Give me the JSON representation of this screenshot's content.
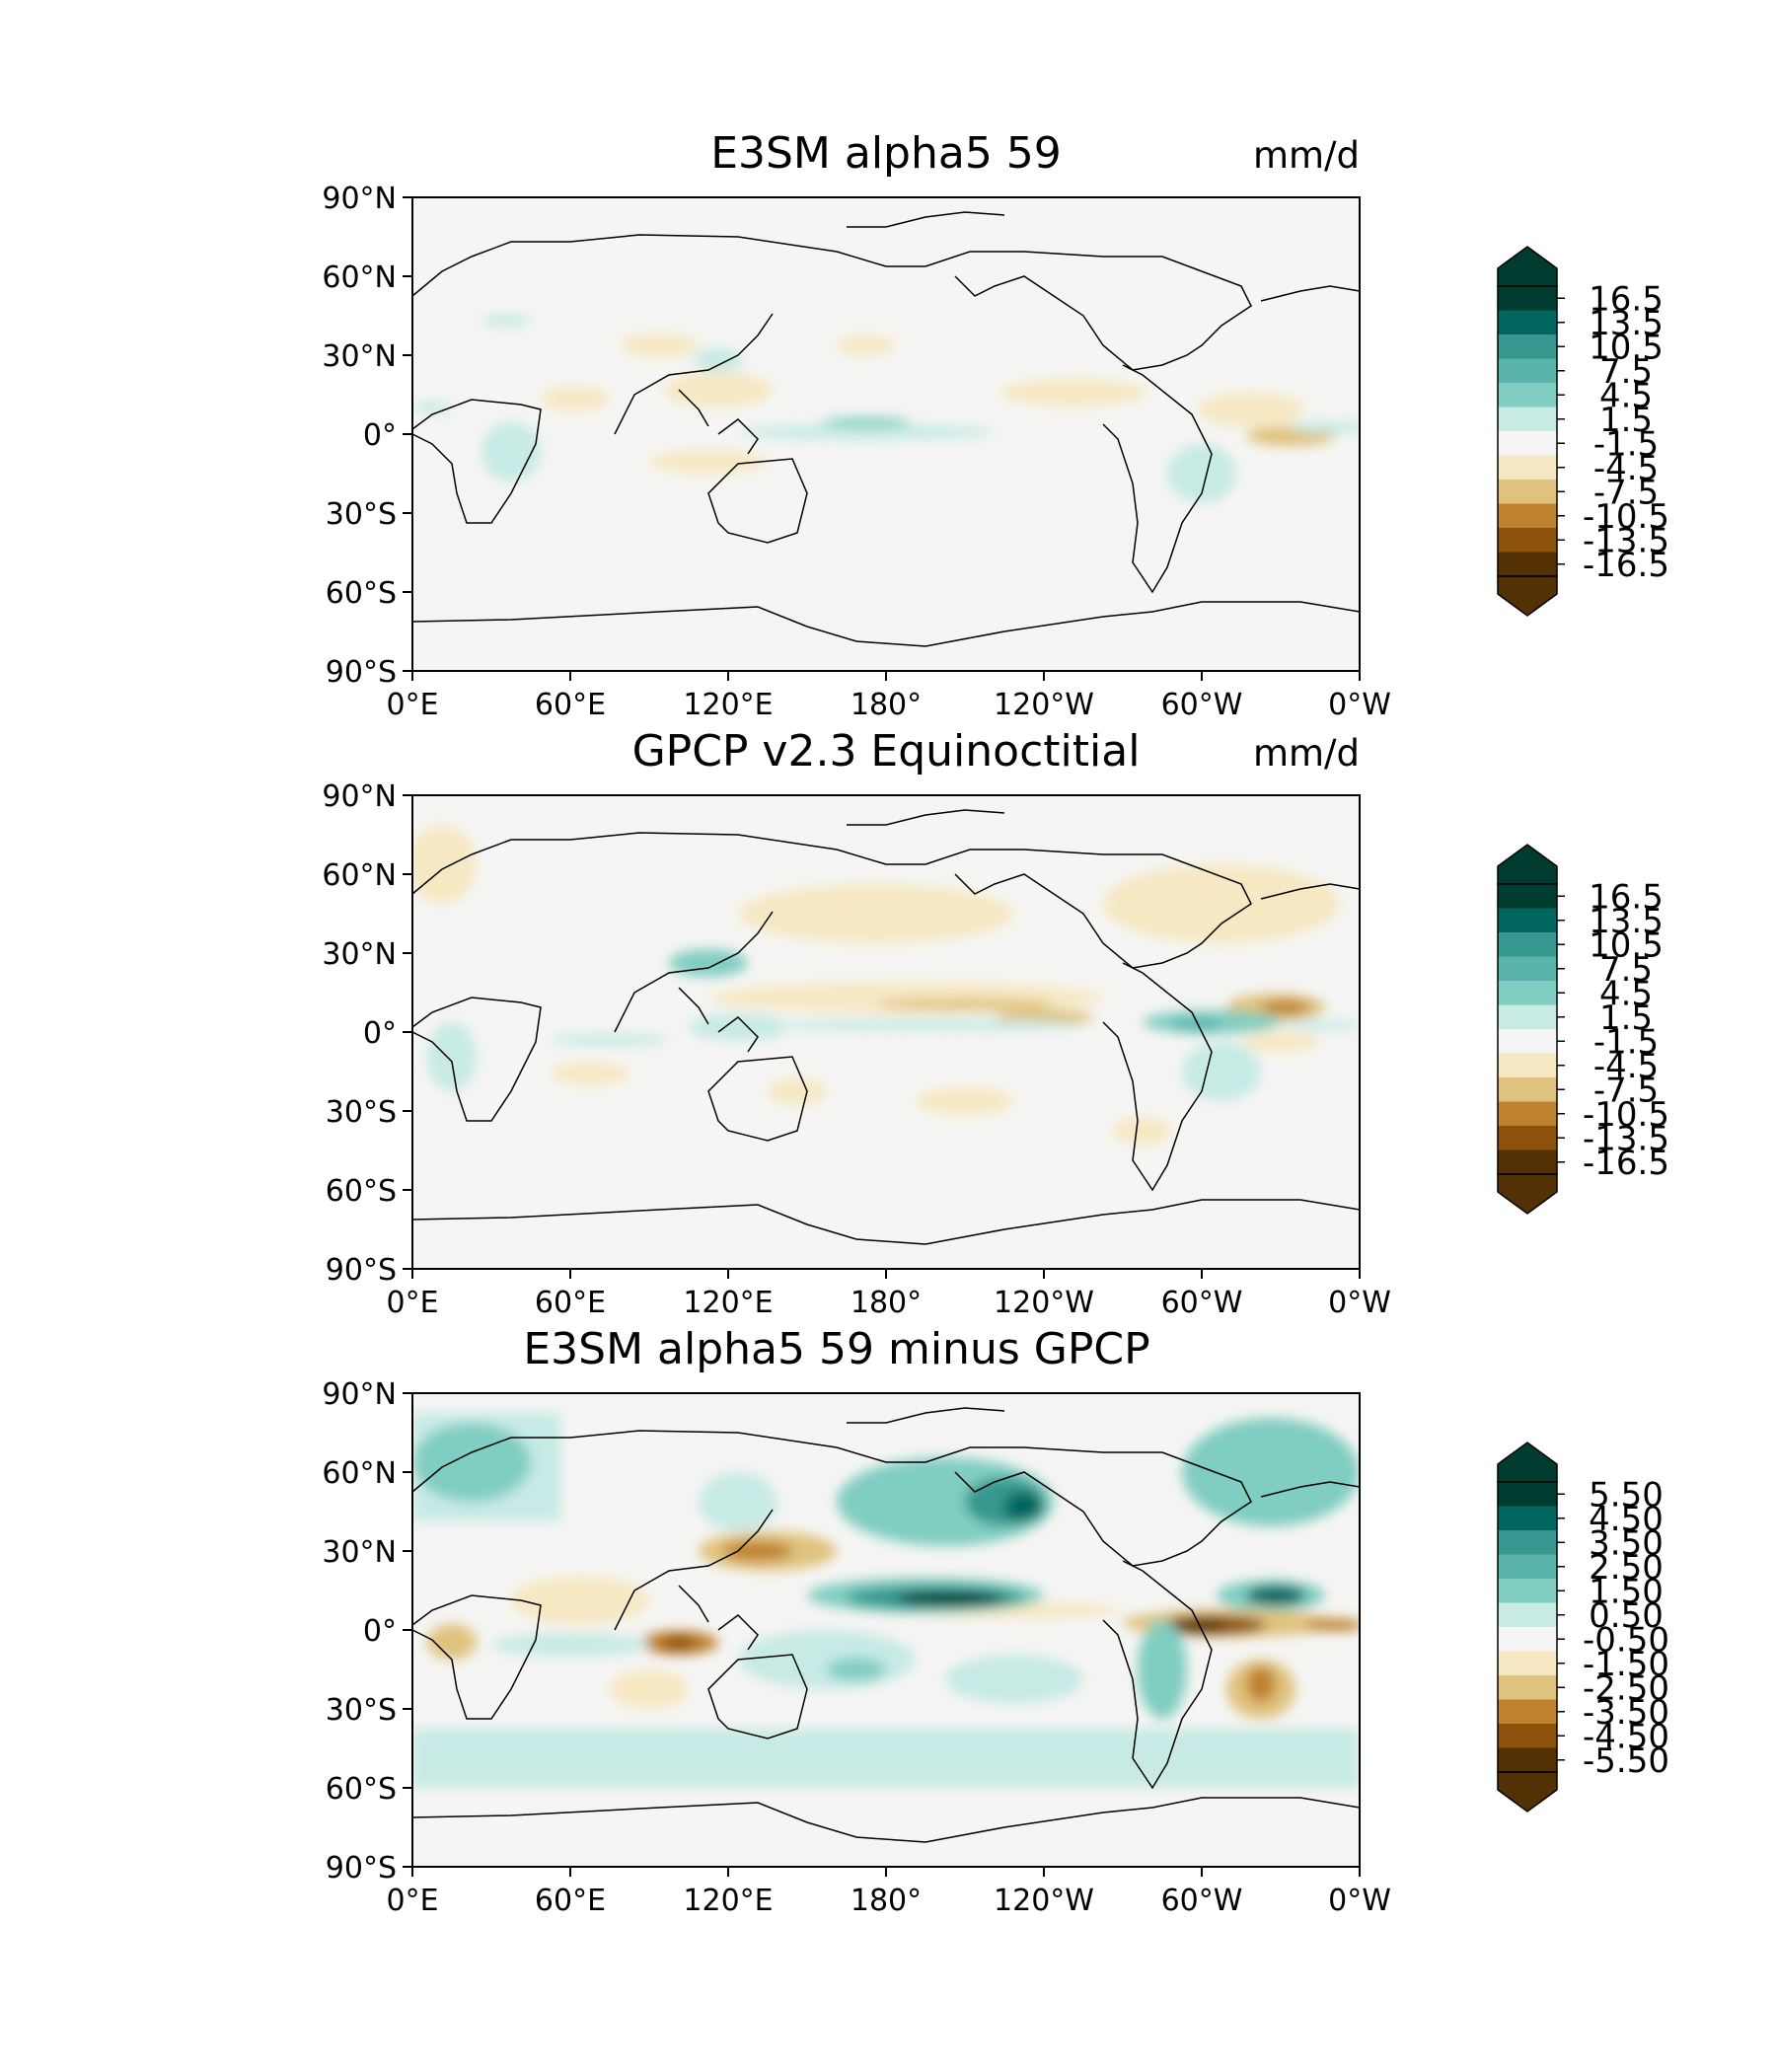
{
  "figure": {
    "x_ticks": [
      "0°E",
      "60°E",
      "120°E",
      "180°",
      "120°W",
      "60°W",
      "0°W"
    ],
    "y_ticks": [
      "90°N",
      "60°N",
      "30°N",
      "0°",
      "30°S",
      "60°S",
      "90°S"
    ]
  },
  "panels": [
    {
      "id": "model",
      "title": "E3SM alpha5 59",
      "units": "mm/d",
      "colorbar_labels": [
        "16.5",
        "13.5",
        "10.5",
        "7.5",
        "4.5",
        "1.5",
        "-1.5",
        "-4.5",
        "-7.5",
        "-10.5",
        "-13.5",
        "-16.5"
      ],
      "colorbar_colors": [
        "#003c30",
        "#01665e",
        "#35978f",
        "#5ab4ac",
        "#80cdc1",
        "#c7eae5",
        "#f5f5f5",
        "#f6e8c3",
        "#dfc27d",
        "#bf812d",
        "#8c510a",
        "#543005"
      ]
    },
    {
      "id": "obs",
      "title": "GPCP v2.3 Equinoctitial",
      "units": "mm/d",
      "colorbar_labels": [
        "16.5",
        "13.5",
        "10.5",
        "7.5",
        "4.5",
        "1.5",
        "-1.5",
        "-4.5",
        "-7.5",
        "-10.5",
        "-13.5",
        "-16.5"
      ],
      "colorbar_colors": [
        "#003c30",
        "#01665e",
        "#35978f",
        "#5ab4ac",
        "#80cdc1",
        "#c7eae5",
        "#f5f5f5",
        "#f6e8c3",
        "#dfc27d",
        "#bf812d",
        "#8c510a",
        "#543005"
      ]
    },
    {
      "id": "diff",
      "title": "E3SM alpha5 59 minus GPCP",
      "units": "",
      "colorbar_labels": [
        "5.50",
        "4.50",
        "3.50",
        "2.50",
        "1.50",
        "0.50",
        "-0.50",
        "-1.50",
        "-2.50",
        "-3.50",
        "-4.50",
        "-5.50"
      ],
      "colorbar_colors": [
        "#003c30",
        "#01665e",
        "#35978f",
        "#5ab4ac",
        "#80cdc1",
        "#c7eae5",
        "#f5f5f5",
        "#f6e8c3",
        "#dfc27d",
        "#bf812d",
        "#8c510a",
        "#543005"
      ]
    }
  ]
}
